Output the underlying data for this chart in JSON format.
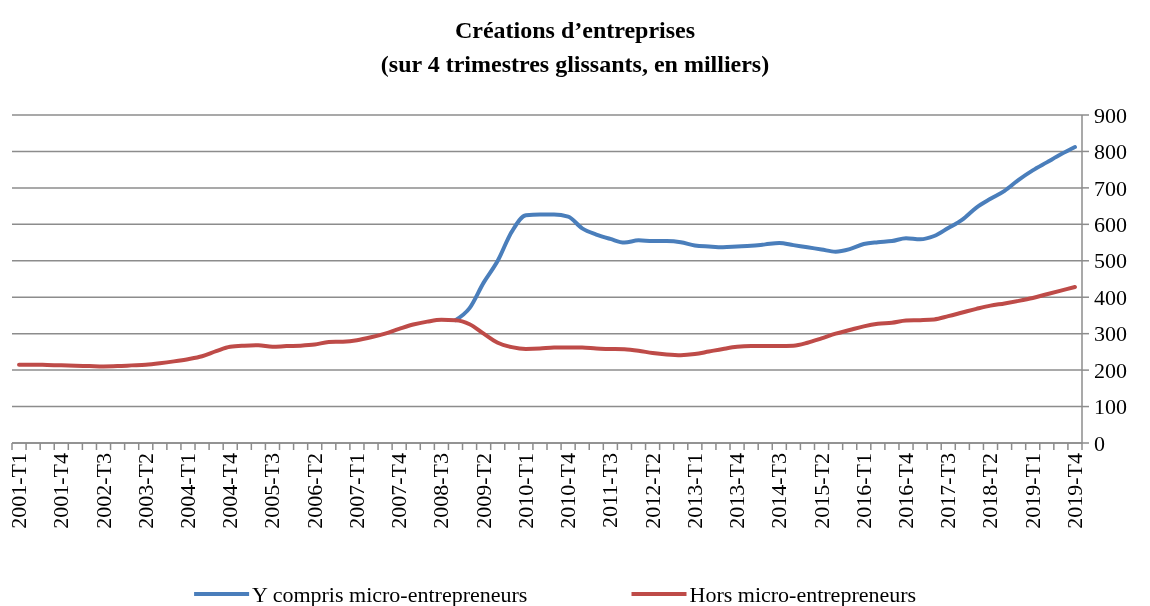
{
  "chart_data": {
    "type": "line",
    "title": "Créations d’entreprises",
    "subtitle": "(sur 4 trimestres glissants, en milliers)",
    "categories": [
      "2001-T1",
      null,
      null,
      "2001-T4",
      null,
      null,
      "2002-T3",
      null,
      null,
      "2003-T2",
      null,
      null,
      "2004-T1",
      null,
      null,
      "2004-T4",
      null,
      null,
      "2005-T3",
      null,
      null,
      "2006-T2",
      null,
      null,
      "2007-T1",
      null,
      null,
      "2007-T4",
      null,
      null,
      "2008-T3",
      null,
      null,
      "2009-T2",
      null,
      null,
      "2010-T1",
      null,
      null,
      "2010-T4",
      null,
      null,
      "2011-T3",
      null,
      null,
      "2012-T2",
      null,
      null,
      "2013-T1",
      null,
      null,
      "2013-T4",
      null,
      null,
      "2014-T3",
      null,
      null,
      "2015-T2",
      null,
      null,
      "2016-T1",
      null,
      null,
      "2016-T4",
      null,
      null,
      "2017-T3",
      null,
      null,
      "2018-T2",
      null,
      null,
      "2019-T1",
      null,
      null,
      "2019-T4"
    ],
    "series": [
      {
        "name": "Y compris micro-entrepreneurs",
        "color": "#4a7ebb",
        "values": [
          null,
          null,
          null,
          null,
          null,
          null,
          null,
          null,
          null,
          null,
          null,
          null,
          null,
          null,
          null,
          null,
          null,
          null,
          null,
          null,
          null,
          null,
          null,
          null,
          null,
          null,
          null,
          null,
          null,
          null,
          null,
          337,
          370,
          440,
          500,
          580,
          625,
          627,
          627,
          621,
          589,
          572,
          560,
          550,
          556,
          554,
          554,
          551,
          542,
          539,
          537,
          539,
          541,
          545,
          549,
          543,
          537,
          531,
          525,
          532,
          546,
          551,
          554,
          562,
          559,
          568,
          590,
          613,
          646,
          670,
          692,
          722,
          748,
          770,
          792,
          812
        ]
      },
      {
        "name": "Hors micro-entrepreneurs",
        "color": "#be4b48",
        "values": [
          215,
          215,
          214,
          213,
          212,
          211,
          210,
          211,
          213,
          215,
          219,
          224,
          230,
          238,
          252,
          264,
          267,
          268,
          264,
          266,
          267,
          270,
          277,
          278,
          282,
          290,
          300,
          313,
          325,
          333,
          338,
          337,
          326,
          300,
          275,
          263,
          258,
          259,
          262,
          262,
          262,
          259,
          258,
          257,
          253,
          247,
          243,
          241,
          244,
          251,
          258,
          264,
          266,
          266,
          266,
          267,
          275,
          287,
          300,
          310,
          320,
          327,
          330,
          336,
          337,
          339,
          348,
          358,
          368,
          377,
          383,
          390,
          398,
          408,
          418,
          428
        ]
      }
    ],
    "ylim": [
      0,
      900
    ],
    "yticks": [
      0,
      100,
      200,
      300,
      400,
      500,
      600,
      700,
      800,
      900
    ],
    "grid": "y",
    "legend": "bottom",
    "line_style": "solid"
  }
}
